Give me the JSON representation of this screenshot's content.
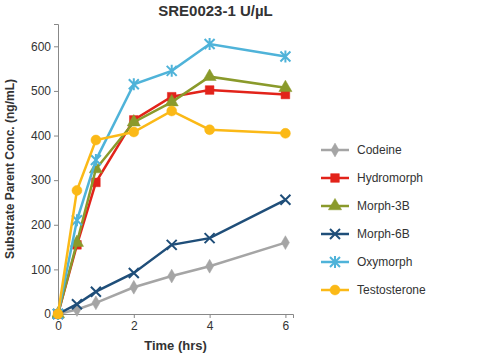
{
  "chart_data": {
    "type": "line",
    "title": "SRE0023-1 U/µL",
    "x_label": "Time (hrs)",
    "y_label": "Substrate Parent Conc. (ng/mL)",
    "x": [
      0,
      0.5,
      1,
      2,
      3,
      4,
      6
    ],
    "xlim": [
      0,
      6.2
    ],
    "xticks": [
      0,
      2,
      4,
      6
    ],
    "ylim": [
      0,
      650
    ],
    "yticks": [
      0,
      100,
      200,
      300,
      400,
      500,
      600
    ],
    "grid": false,
    "legend": "right",
    "series": [
      {
        "name": "Codeine",
        "color": "#a5a5a5",
        "marker": "diamond",
        "values": [
          0,
          10,
          25,
          60,
          85,
          107,
          160
        ]
      },
      {
        "name": "Hydromorph",
        "color": "#e2231a",
        "marker": "square",
        "values": [
          0,
          155,
          295,
          435,
          487,
          502,
          492
        ]
      },
      {
        "name": "Morph-3B",
        "color": "#8a9a2b",
        "marker": "triangle",
        "values": [
          0,
          160,
          325,
          430,
          475,
          532,
          507
        ]
      },
      {
        "name": "Morph-6B",
        "color": "#1f4e79",
        "marker": "x",
        "values": [
          0,
          22,
          50,
          92,
          155,
          170,
          256
        ]
      },
      {
        "name": "Oxymorph",
        "color": "#4fb3d9",
        "marker": "asterisk",
        "values": [
          0,
          210,
          345,
          515,
          545,
          605,
          577
        ]
      },
      {
        "name": "Testosterone",
        "color": "#fbb917",
        "marker": "circle",
        "values": [
          0,
          277,
          390,
          408,
          455,
          413,
          405
        ]
      }
    ]
  }
}
